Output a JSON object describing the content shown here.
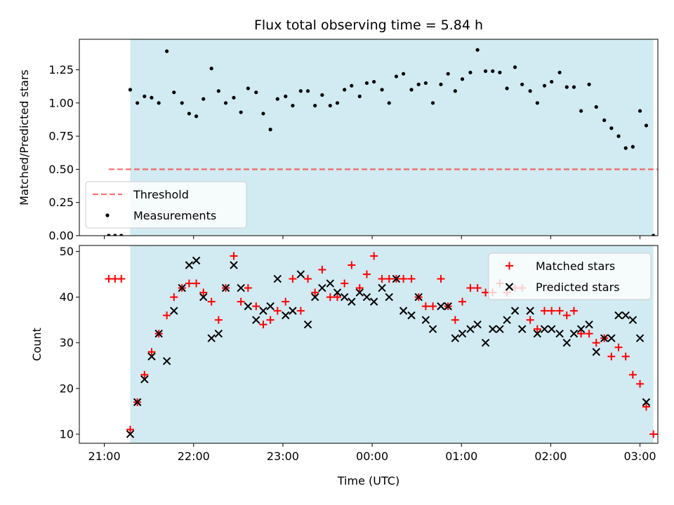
{
  "title": "Flux total observing time = 5.84 h",
  "colors": {
    "shade": "#add8e6",
    "threshold": "#ff0000",
    "measurements": "#000000",
    "matched": "#ff0000",
    "predicted": "#000000"
  },
  "chart_data": [
    {
      "type": "scatter",
      "ylabel": "Matched/Predicted stars",
      "ylim": [
        0,
        1.48
      ],
      "yticks": [
        0,
        0.25,
        0.5,
        0.75,
        1.0,
        1.25
      ],
      "ytick_labels": [
        "0.00",
        "0.25",
        "0.50",
        "0.75",
        "1.00",
        "1.25"
      ],
      "x_unit": "hours since 21:00 UTC",
      "xlim": [
        -0.28,
        6.2
      ],
      "shaded_span": [
        0.29,
        6.15
      ],
      "legend": {
        "position": "lower-left",
        "entries": [
          "Threshold",
          "Measurements"
        ]
      },
      "series": [
        {
          "name": "Threshold",
          "style": "dashed-line",
          "x": [
            0.05,
            6.52
          ],
          "y": [
            0.5,
            0.5
          ]
        },
        {
          "name": "Measurements",
          "style": "dots",
          "x": [
            0.05,
            0.12,
            0.19,
            0.29,
            0.37,
            0.45,
            0.53,
            0.61,
            0.7,
            0.78,
            0.87,
            0.95,
            1.03,
            1.11,
            1.2,
            1.28,
            1.36,
            1.45,
            1.53,
            1.61,
            1.7,
            1.78,
            1.86,
            1.94,
            2.03,
            2.11,
            2.2,
            2.28,
            2.36,
            2.44,
            2.53,
            2.61,
            2.69,
            2.77,
            2.86,
            2.94,
            3.02,
            3.11,
            3.19,
            3.27,
            3.35,
            3.44,
            3.52,
            3.6,
            3.68,
            3.77,
            3.85,
            3.93,
            4.01,
            4.1,
            4.18,
            4.27,
            4.35,
            4.43,
            4.51,
            4.6,
            4.68,
            4.77,
            4.85,
            4.93,
            5.01,
            5.1,
            5.18,
            5.26,
            5.34,
            5.43,
            5.51,
            5.6,
            5.68,
            5.76,
            5.84,
            5.92,
            6.0,
            6.07,
            6.15,
            6.22,
            6.3,
            6.37,
            6.44
          ],
          "y": [
            0,
            0,
            0,
            1.1,
            1.0,
            1.05,
            1.04,
            1.0,
            1.39,
            1.08,
            1.0,
            0.92,
            0.9,
            1.03,
            1.26,
            1.09,
            1.0,
            1.04,
            0.93,
            1.11,
            1.08,
            0.92,
            0.8,
            1.03,
            1.05,
            0.98,
            1.09,
            1.09,
            0.98,
            1.06,
            0.98,
            1.0,
            1.1,
            1.13,
            1.05,
            1.15,
            1.16,
            1.1,
            1.0,
            1.2,
            1.22,
            1.1,
            1.14,
            1.15,
            1.0,
            1.14,
            1.22,
            1.09,
            1.18,
            1.23,
            1.4,
            1.24,
            1.24,
            1.23,
            1.11,
            1.27,
            1.14,
            1.09,
            1.0,
            1.13,
            1.16,
            1.23,
            1.12,
            1.12,
            0.94,
            1.14,
            0.97,
            0.87,
            0.81,
            0.75,
            0.66,
            0.67,
            0.94,
            0.83,
            0,
            0,
            0,
            0,
            0
          ]
        }
      ]
    },
    {
      "type": "scatter",
      "ylabel": "Count",
      "xlabel": "Time (UTC)",
      "ylim": [
        8,
        51.3
      ],
      "yticks": [
        10,
        20,
        30,
        40,
        50
      ],
      "xlim": [
        -0.28,
        6.2
      ],
      "xticks": [
        0,
        1,
        2,
        3,
        4,
        5,
        6
      ],
      "xtick_labels": [
        "21:00",
        "22:00",
        "23:00",
        "00:00",
        "01:00",
        "02:00",
        "03:00"
      ],
      "shaded_span": [
        0.29,
        6.15
      ],
      "legend": {
        "position": "top-right",
        "entries": [
          "Matched stars",
          "Predicted stars"
        ]
      },
      "series": [
        {
          "name": "Matched stars",
          "marker": "+",
          "x": [
            0.05,
            0.12,
            0.19,
            0.29,
            0.37,
            0.45,
            0.53,
            0.61,
            0.7,
            0.78,
            0.87,
            0.95,
            1.03,
            1.11,
            1.2,
            1.28,
            1.36,
            1.45,
            1.53,
            1.61,
            1.7,
            1.78,
            1.86,
            1.94,
            2.03,
            2.11,
            2.2,
            2.28,
            2.36,
            2.44,
            2.53,
            2.61,
            2.69,
            2.77,
            2.86,
            2.94,
            3.02,
            3.11,
            3.19,
            3.27,
            3.35,
            3.44,
            3.52,
            3.6,
            3.68,
            3.77,
            3.85,
            3.93,
            4.01,
            4.1,
            4.18,
            4.27,
            4.35,
            4.43,
            4.51,
            4.6,
            4.68,
            4.77,
            4.85,
            4.93,
            5.01,
            5.1,
            5.18,
            5.26,
            5.34,
            5.43,
            5.51,
            5.6,
            5.68,
            5.76,
            5.84,
            5.92,
            6.0,
            6.07,
            6.15,
            6.22,
            6.3,
            6.37,
            6.44
          ],
          "y": [
            44,
            44,
            44,
            11,
            17,
            23,
            28,
            32,
            36,
            40,
            42,
            43,
            43,
            41,
            39,
            35,
            42,
            49,
            39,
            42,
            38,
            34,
            35,
            37,
            39,
            44,
            37,
            44,
            41,
            46,
            40,
            40,
            43,
            47,
            42,
            45,
            49,
            44,
            44,
            44,
            44,
            44,
            40,
            38,
            38,
            44,
            38,
            35,
            39,
            42,
            42,
            41,
            41,
            43,
            41,
            42,
            42,
            35,
            33,
            37,
            37,
            37,
            36,
            37,
            32,
            32,
            30,
            31,
            27,
            29,
            27,
            23,
            21,
            16,
            10,
            10,
            10,
            10,
            10
          ]
        },
        {
          "name": "Predicted stars",
          "marker": "x",
          "x": [
            0.29,
            0.37,
            0.45,
            0.53,
            0.61,
            0.7,
            0.78,
            0.87,
            0.95,
            1.03,
            1.11,
            1.2,
            1.28,
            1.36,
            1.45,
            1.53,
            1.61,
            1.7,
            1.78,
            1.86,
            1.94,
            2.03,
            2.11,
            2.2,
            2.28,
            2.36,
            2.44,
            2.53,
            2.61,
            2.69,
            2.77,
            2.86,
            2.94,
            3.02,
            3.11,
            3.19,
            3.27,
            3.35,
            3.44,
            3.52,
            3.6,
            3.68,
            3.77,
            3.85,
            3.93,
            4.01,
            4.1,
            4.18,
            4.27,
            4.35,
            4.43,
            4.51,
            4.6,
            4.68,
            4.77,
            4.85,
            4.93,
            5.01,
            5.1,
            5.18,
            5.26,
            5.34,
            5.43,
            5.51,
            5.6,
            5.68,
            5.76,
            5.84,
            5.92,
            6.0,
            6.07
          ],
          "y": [
            10,
            17,
            22,
            27,
            32,
            26,
            37,
            42,
            47,
            48,
            40,
            31,
            32,
            42,
            47,
            42,
            38,
            35,
            37,
            38,
            44,
            36,
            37,
            45,
            34,
            40,
            42,
            43,
            41,
            40,
            39,
            41,
            40,
            39,
            42,
            40,
            44,
            37,
            36,
            40,
            35,
            33,
            38,
            38,
            31,
            32,
            33,
            34,
            30,
            33,
            33,
            35,
            37,
            33,
            37,
            32,
            33,
            33,
            32,
            30,
            32,
            33,
            34,
            28,
            31,
            31,
            36,
            36,
            35,
            31,
            17
          ]
        }
      ]
    }
  ]
}
